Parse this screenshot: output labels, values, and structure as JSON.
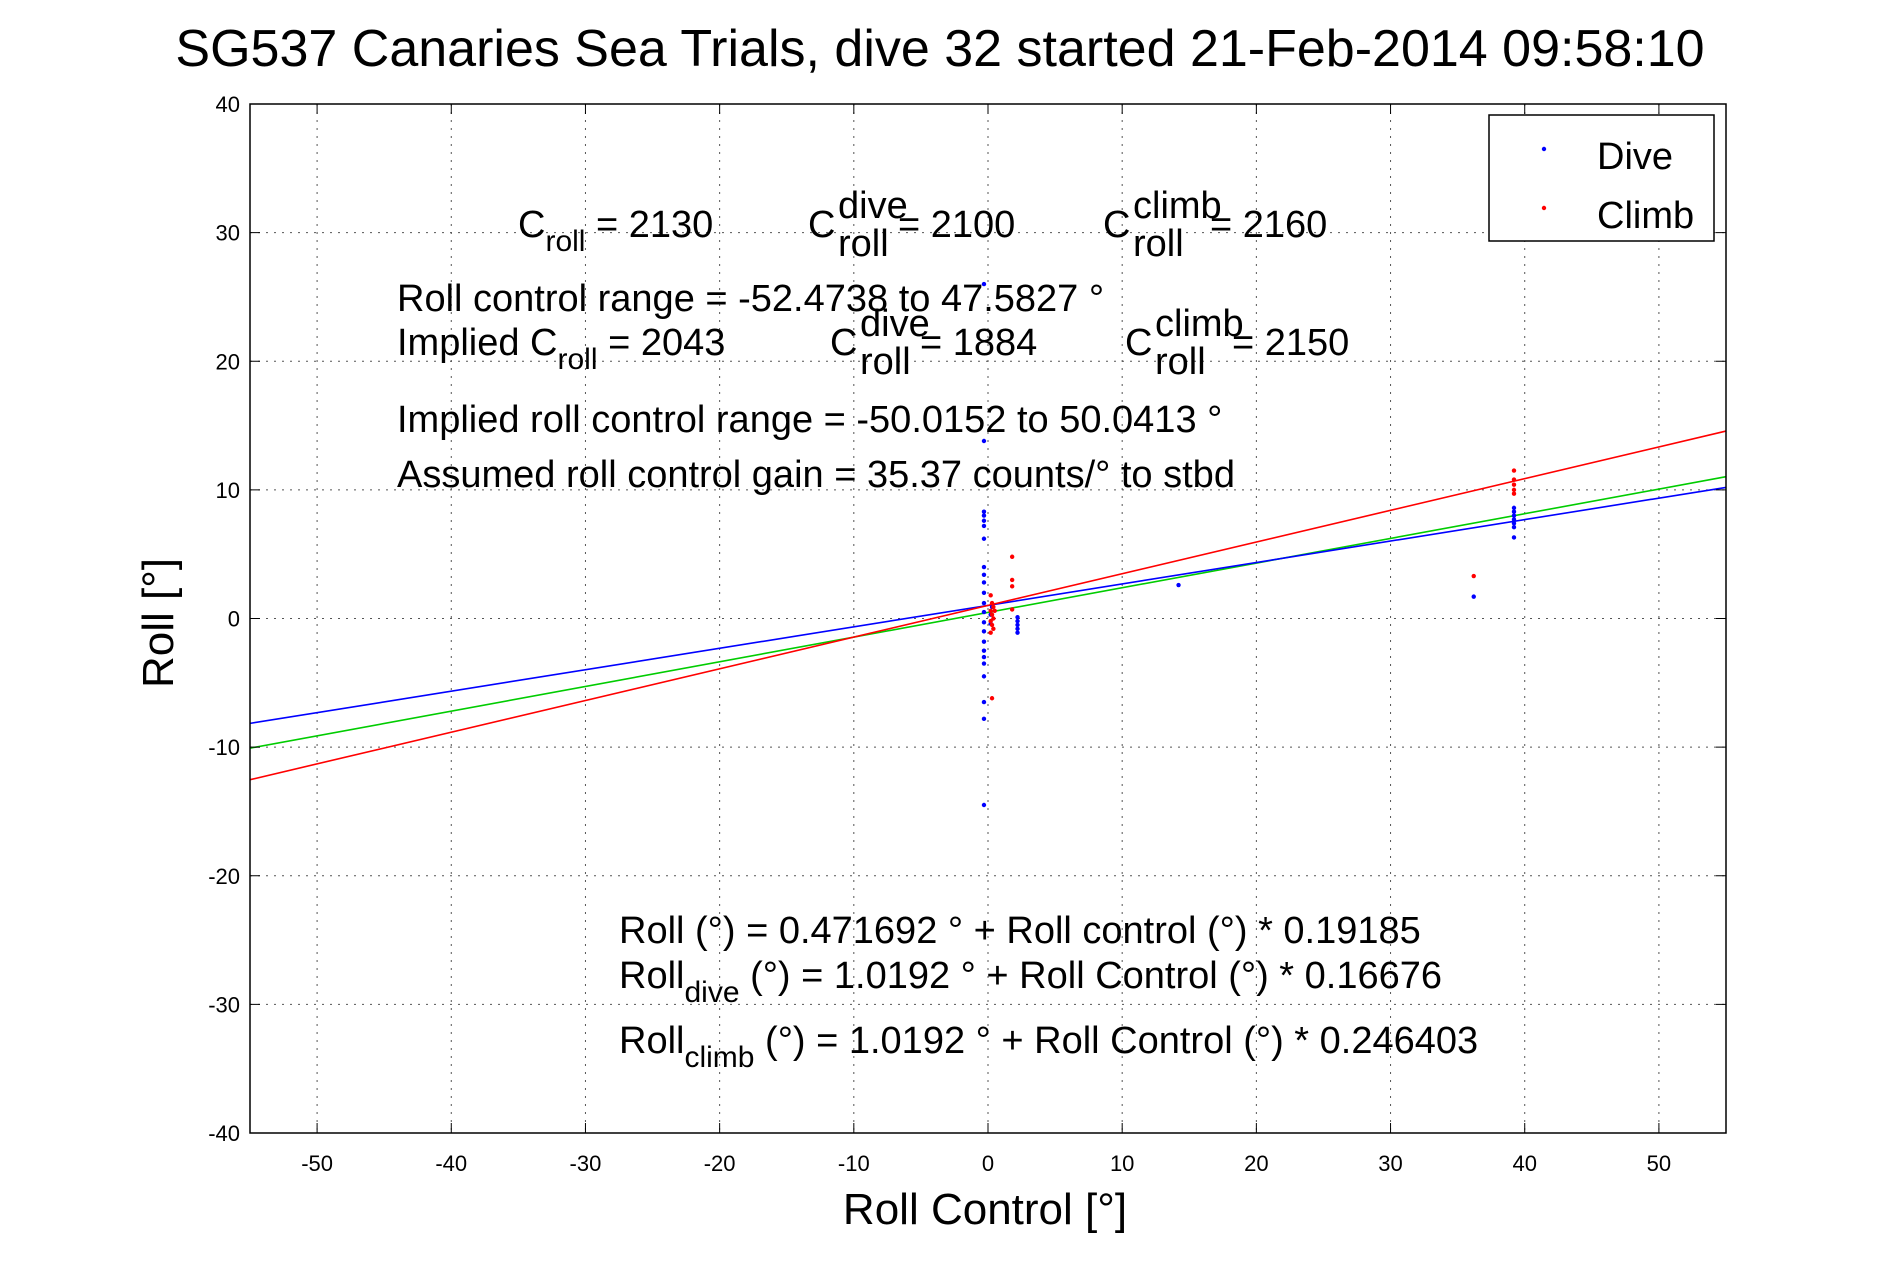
{
  "chart_data": {
    "type": "scatter",
    "title": "SG537 Canaries Sea Trials, dive 32 started 21-Feb-2014 09:58:10",
    "xlabel": "Roll Control [°]",
    "ylabel": "Roll [°]",
    "xlim": [
      -55,
      55
    ],
    "ylim": [
      -40,
      40
    ],
    "xticks": [
      -50,
      -40,
      -30,
      -20,
      -10,
      0,
      10,
      20,
      30,
      40,
      50
    ],
    "yticks": [
      -40,
      -30,
      -20,
      -10,
      0,
      10,
      20,
      30,
      40
    ],
    "grid": true,
    "legend_position": "top-right",
    "series": [
      {
        "name": "Dive",
        "color": "#0000ff",
        "points": [
          [
            -0.3,
            26
          ],
          [
            -0.3,
            13.8
          ],
          [
            -0.3,
            8.3
          ],
          [
            -0.3,
            8.0
          ],
          [
            -0.3,
            7.6
          ],
          [
            -0.3,
            7.2
          ],
          [
            -0.3,
            6.2
          ],
          [
            -0.3,
            4.0
          ],
          [
            -0.3,
            3.4
          ],
          [
            -0.3,
            2.8
          ],
          [
            -0.3,
            2.0
          ],
          [
            -0.3,
            1.2
          ],
          [
            -0.3,
            0.5
          ],
          [
            -0.3,
            -0.3
          ],
          [
            -0.3,
            -1.0
          ],
          [
            -0.3,
            -1.8
          ],
          [
            -0.3,
            -2.5
          ],
          [
            -0.3,
            -3.0
          ],
          [
            -0.3,
            -3.5
          ],
          [
            -0.3,
            -4.5
          ],
          [
            -0.3,
            -6.5
          ],
          [
            -0.3,
            -7.8
          ],
          [
            -0.3,
            -14.5
          ],
          [
            0.2,
            0.3
          ],
          [
            0.2,
            -0.4
          ],
          [
            0.3,
            0.9
          ],
          [
            2.2,
            0.1
          ],
          [
            2.2,
            -0.2
          ],
          [
            2.2,
            -0.5
          ],
          [
            2.2,
            -0.8
          ],
          [
            2.2,
            -1.1
          ],
          [
            14.2,
            2.6
          ],
          [
            36.2,
            1.7
          ],
          [
            39.2,
            8.6
          ],
          [
            39.2,
            8.3
          ],
          [
            39.2,
            8.0
          ],
          [
            39.2,
            7.7
          ],
          [
            39.2,
            7.4
          ],
          [
            39.2,
            7.1
          ],
          [
            39.2,
            6.3
          ]
        ]
      },
      {
        "name": "Climb",
        "color": "#ff0000",
        "points": [
          [
            0.2,
            1.8
          ],
          [
            0.3,
            1.2
          ],
          [
            0.4,
            0.9
          ],
          [
            0.2,
            0.6
          ],
          [
            0.3,
            0.3
          ],
          [
            0.4,
            0.0
          ],
          [
            0.2,
            -0.2
          ],
          [
            0.3,
            -0.5
          ],
          [
            0.4,
            -0.8
          ],
          [
            0.2,
            -1.1
          ],
          [
            0.5,
            0.6
          ],
          [
            0.3,
            -6.2
          ],
          [
            1.8,
            4.8
          ],
          [
            1.8,
            3.0
          ],
          [
            1.8,
            2.5
          ],
          [
            1.8,
            0.7
          ],
          [
            36.2,
            3.3
          ],
          [
            39.2,
            11.5
          ],
          [
            39.2,
            10.8
          ],
          [
            39.2,
            10.4
          ],
          [
            39.2,
            10.0
          ],
          [
            39.2,
            9.7
          ]
        ]
      }
    ],
    "fit_lines": [
      {
        "color": "#00cc00",
        "intercept": 0.471692,
        "slope": 0.19185
      },
      {
        "color": "#0000ff",
        "intercept": 1.0192,
        "slope": 0.16676
      },
      {
        "color": "#ff0000",
        "intercept": 1.0192,
        "slope": 0.246403
      }
    ],
    "annotations": {
      "line1": {
        "c_roll_base": "C",
        "c_roll_sub": "roll",
        "c_roll_val": " = 2130",
        "c_dive_base": "C",
        "c_dive_sup": "dive",
        "c_dive_sub": "roll",
        "c_dive_val": " = 2100",
        "c_climb_base": "C",
        "c_climb_sup": "climb",
        "c_climb_sub": "roll",
        "c_climb_val": " = 2160"
      },
      "line2": "Roll control range = -52.4738 to 47.5827 °",
      "line3": {
        "prefix": "Implied C",
        "sub": "roll",
        "val": " = 2043",
        "c_dive_base": "C",
        "c_dive_sup": "dive",
        "c_dive_sub": "roll",
        "c_dive_val": " = 1884",
        "c_climb_base": "C",
        "c_climb_sup": "climb",
        "c_climb_sub": "roll",
        "c_climb_val": " = 2150"
      },
      "line4": "Implied roll control range = -50.0152 to 50.0413 °",
      "line5": "Assumed roll control gain = 35.37 counts/° to stbd",
      "eq1": "Roll (°) = 0.471692 ° + Roll control (°) * 0.19185",
      "eq2": {
        "base": "Roll",
        "sub": "dive",
        "rest": " (°) = 1.0192 ° + Roll Control (°) * 0.16676"
      },
      "eq3": {
        "base": "Roll",
        "sub": "climb",
        "rest": " (°) = 1.0192 ° + Roll Control (°) * 0.246403"
      }
    }
  }
}
